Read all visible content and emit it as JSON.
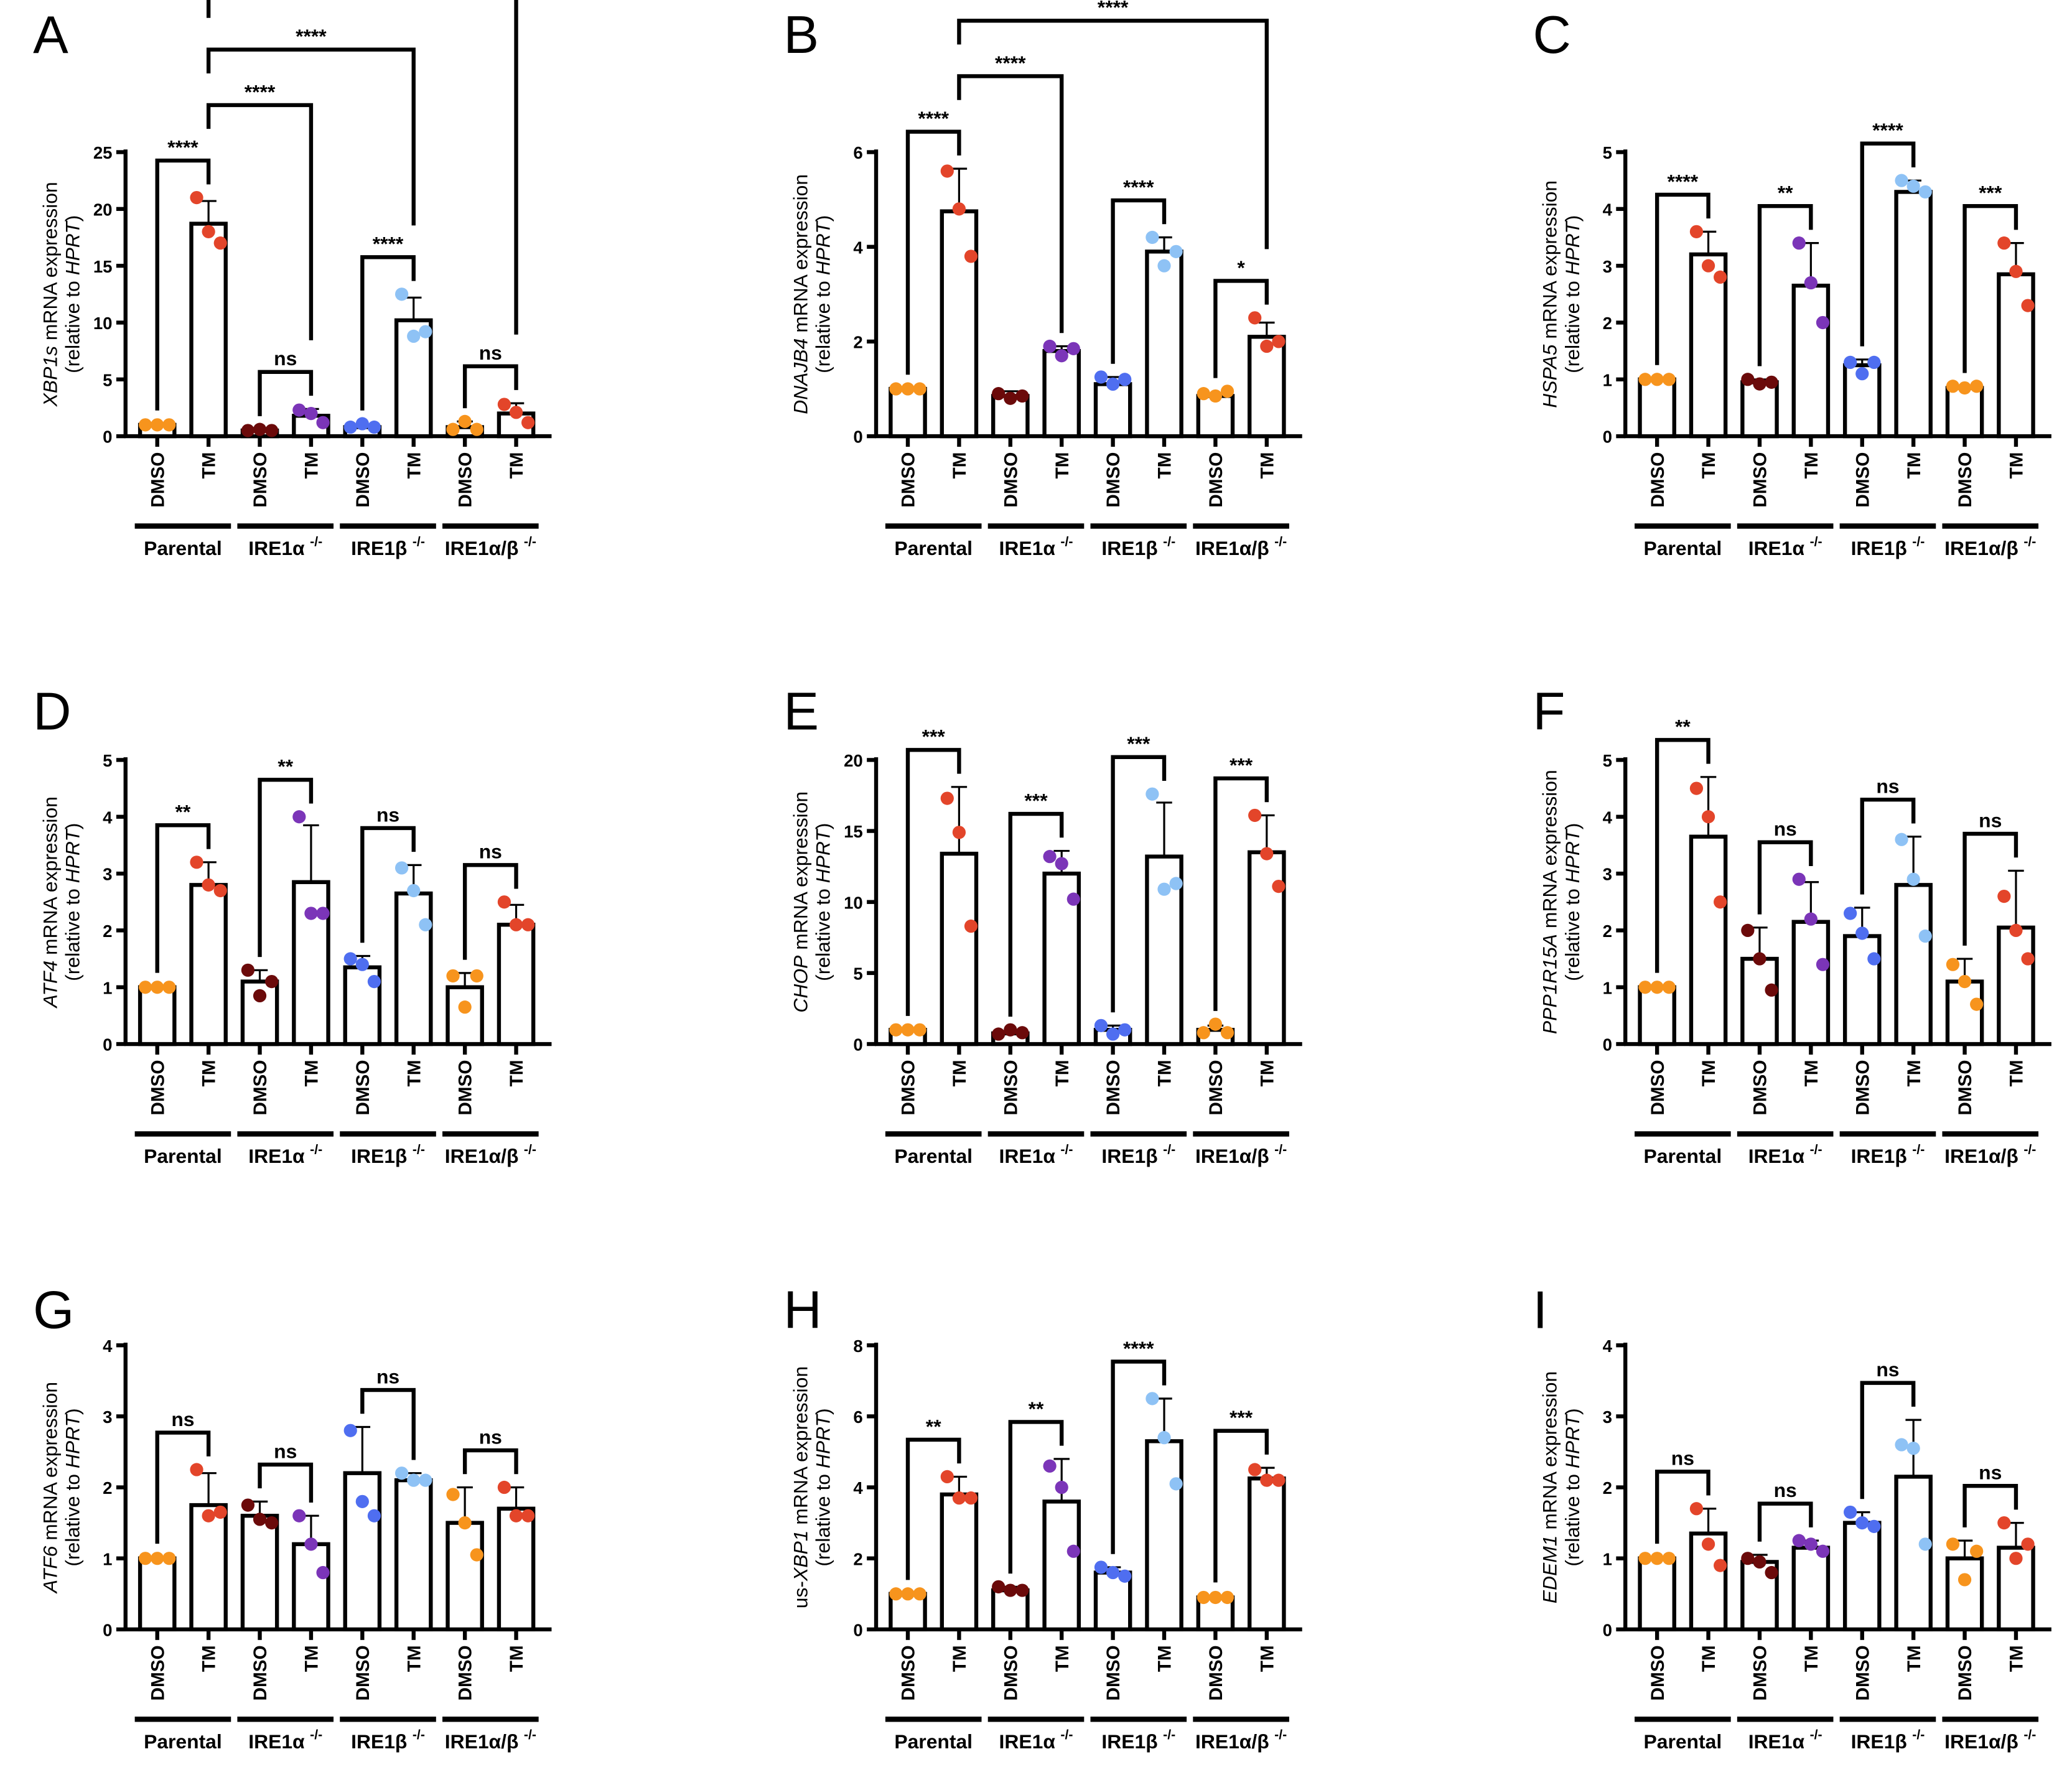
{
  "chart_data": {
    "type": "bar",
    "groups": [
      "Parental",
      "IRE1α",
      "IRE1β",
      "IRE1α/β"
    ],
    "group_superscript": "-/-",
    "treatments": [
      "DMSO",
      "TM"
    ],
    "point_colors": [
      "#F7941D",
      "#E3452A",
      "#6B0A0A",
      "#7B35B8",
      "#4F6EF0",
      "#8EC2F5",
      "#F7941D",
      "#E3452A"
    ],
    "ylabel_mid": " mRNA expression",
    "ylabel_line2_pre": "(relative to ",
    "ylabel_line2_gene": "HPRT",
    "ylabel_line2_post": ")",
    "panels": [
      {
        "letter": "A",
        "gene": "XBP1s",
        "prefix": "",
        "ylim": [
          0,
          25
        ],
        "yticks": [
          "0",
          "5",
          "10",
          "15",
          "20",
          "25"
        ],
        "means": [
          1,
          18.7,
          0.5,
          1.8,
          0.8,
          10.2,
          0.8,
          2.0
        ],
        "sd": [
          0.1,
          2,
          0.05,
          0.6,
          0.2,
          2,
          0.5,
          0.9
        ],
        "points": [
          [
            1,
            1,
            1
          ],
          [
            21,
            18,
            17
          ],
          [
            0.5,
            0.6,
            0.5
          ],
          [
            2.3,
            2.0,
            1.2
          ],
          [
            0.8,
            1.1,
            0.8
          ],
          [
            12.5,
            8.8,
            9.2
          ],
          [
            0.6,
            1.3,
            0.6
          ],
          [
            2.8,
            2.1,
            1.2
          ]
        ],
        "comparisons": [
          {
            "a": 0,
            "b": 1,
            "label": "****"
          },
          {
            "a": 2,
            "b": 3,
            "label": "ns"
          },
          {
            "a": 4,
            "b": 5,
            "label": "****"
          },
          {
            "a": 6,
            "b": 7,
            "label": "ns"
          },
          {
            "a": 1,
            "b": 3,
            "label": "****"
          },
          {
            "a": 1,
            "b": 5,
            "label": "****"
          },
          {
            "a": 1,
            "b": 7,
            "label": "****"
          }
        ]
      },
      {
        "letter": "B",
        "gene": "DNAJB4",
        "prefix": "",
        "ylim": [
          0,
          6
        ],
        "yticks": [
          "0",
          "2",
          "4",
          "6"
        ],
        "means": [
          1,
          4.75,
          0.85,
          1.8,
          1.1,
          3.9,
          0.85,
          2.1
        ],
        "sd": [
          0.02,
          0.9,
          0.1,
          0.1,
          0.15,
          0.3,
          0.05,
          0.3
        ],
        "points": [
          [
            1,
            1,
            1
          ],
          [
            5.6,
            4.8,
            3.8
          ],
          [
            0.9,
            0.8,
            0.85
          ],
          [
            1.9,
            1.7,
            1.85
          ],
          [
            1.25,
            1.1,
            1.2
          ],
          [
            4.2,
            3.6,
            3.9
          ],
          [
            0.9,
            0.85,
            0.95
          ],
          [
            2.5,
            1.9,
            2.0
          ]
        ],
        "comparisons": [
          {
            "a": 0,
            "b": 1,
            "label": "****"
          },
          {
            "a": 4,
            "b": 5,
            "label": "****"
          },
          {
            "a": 6,
            "b": 7,
            "label": "*"
          },
          {
            "a": 1,
            "b": 3,
            "label": "****"
          },
          {
            "a": 1,
            "b": 7,
            "label": "****"
          }
        ]
      },
      {
        "letter": "C",
        "gene": "HSPA5",
        "prefix": "",
        "ylim": [
          0,
          5
        ],
        "yticks": [
          "0",
          "1",
          "2",
          "3",
          "4",
          "5"
        ],
        "means": [
          1,
          3.2,
          0.95,
          2.65,
          1.25,
          4.3,
          0.85,
          2.85
        ],
        "sd": [
          0.02,
          0.4,
          0.05,
          0.75,
          0.1,
          0.2,
          0.03,
          0.55
        ],
        "points": [
          [
            1,
            1,
            1
          ],
          [
            3.6,
            3.0,
            2.8
          ],
          [
            1.0,
            0.92,
            0.95
          ],
          [
            3.4,
            2.7,
            2.0
          ],
          [
            1.3,
            1.1,
            1.3
          ],
          [
            4.5,
            4.4,
            4.3
          ],
          [
            0.88,
            0.85,
            0.88
          ],
          [
            3.4,
            2.9,
            2.3
          ]
        ],
        "comparisons": [
          {
            "a": 0,
            "b": 1,
            "label": "****"
          },
          {
            "a": 2,
            "b": 3,
            "label": "**"
          },
          {
            "a": 4,
            "b": 5,
            "label": "****"
          },
          {
            "a": 6,
            "b": 7,
            "label": "***"
          }
        ]
      },
      {
        "letter": "D",
        "gene": "ATF4",
        "prefix": "",
        "ylim": [
          0,
          5
        ],
        "yticks": [
          "0",
          "1",
          "2",
          "3",
          "4",
          "5"
        ],
        "means": [
          1,
          2.8,
          1.1,
          2.85,
          1.35,
          2.65,
          1.0,
          2.1
        ],
        "sd": [
          0.02,
          0.4,
          0.2,
          1.0,
          0.2,
          0.5,
          0.25,
          0.35
        ],
        "points": [
          [
            1,
            1,
            1
          ],
          [
            3.2,
            2.8,
            2.7
          ],
          [
            1.3,
            0.85,
            1.1
          ],
          [
            4.0,
            2.3,
            2.3
          ],
          [
            1.5,
            1.4,
            1.1
          ],
          [
            3.1,
            2.7,
            2.1
          ],
          [
            1.2,
            0.65,
            1.2
          ],
          [
            2.5,
            2.1,
            2.1
          ]
        ],
        "comparisons": [
          {
            "a": 0,
            "b": 1,
            "label": "**"
          },
          {
            "a": 2,
            "b": 3,
            "label": "**"
          },
          {
            "a": 4,
            "b": 5,
            "label": "ns"
          },
          {
            "a": 6,
            "b": 7,
            "label": "ns"
          }
        ]
      },
      {
        "letter": "E",
        "gene": "CHOP",
        "prefix": "",
        "ylim": [
          0,
          20
        ],
        "yticks": [
          "0",
          "5",
          "10",
          "15",
          "20"
        ],
        "means": [
          1,
          13.4,
          0.75,
          12.0,
          1.0,
          13.2,
          1.0,
          13.5
        ],
        "sd": [
          0.05,
          4.7,
          0.1,
          1.6,
          0.3,
          3.8,
          0.3,
          2.6
        ],
        "points": [
          [
            1,
            1,
            1
          ],
          [
            17.3,
            14.9,
            8.3
          ],
          [
            0.7,
            1.0,
            0.8
          ],
          [
            13.2,
            12.7,
            10.2
          ],
          [
            1.3,
            0.7,
            1.0
          ],
          [
            17.6,
            10.9,
            11.3
          ],
          [
            0.8,
            1.4,
            0.8
          ],
          [
            16.1,
            13.4,
            11.1
          ]
        ],
        "comparisons": [
          {
            "a": 0,
            "b": 1,
            "label": "***"
          },
          {
            "a": 2,
            "b": 3,
            "label": "***"
          },
          {
            "a": 4,
            "b": 5,
            "label": "***"
          },
          {
            "a": 6,
            "b": 7,
            "label": "***"
          }
        ]
      },
      {
        "letter": "F",
        "gene": "PPP1R15A",
        "prefix": "",
        "ylim": [
          0,
          5
        ],
        "yticks": [
          "0",
          "1",
          "2",
          "3",
          "4",
          "5"
        ],
        "means": [
          1,
          3.65,
          1.5,
          2.15,
          1.9,
          2.8,
          1.1,
          2.05
        ],
        "sd": [
          0.02,
          1.05,
          0.55,
          0.7,
          0.5,
          0.85,
          0.4,
          1.0
        ],
        "points": [
          [
            1,
            1,
            1
          ],
          [
            4.5,
            4.0,
            2.5
          ],
          [
            2.0,
            1.5,
            0.95
          ],
          [
            2.9,
            2.2,
            1.4
          ],
          [
            2.3,
            1.95,
            1.5
          ],
          [
            3.6,
            2.9,
            1.9
          ],
          [
            1.4,
            1.1,
            0.7
          ],
          [
            2.6,
            2.0,
            1.5
          ]
        ],
        "comparisons": [
          {
            "a": 0,
            "b": 1,
            "label": "**"
          },
          {
            "a": 2,
            "b": 3,
            "label": "ns"
          },
          {
            "a": 4,
            "b": 5,
            "label": "ns"
          },
          {
            "a": 6,
            "b": 7,
            "label": "ns"
          }
        ]
      },
      {
        "letter": "G",
        "gene": "ATF6",
        "prefix": "",
        "ylim": [
          0,
          4
        ],
        "yticks": [
          "0",
          "1",
          "2",
          "3",
          "4"
        ],
        "means": [
          1,
          1.75,
          1.6,
          1.2,
          2.2,
          2.1,
          1.5,
          1.7
        ],
        "sd": [
          0.02,
          0.45,
          0.2,
          0.4,
          0.65,
          0.1,
          0.5,
          0.3
        ],
        "points": [
          [
            1,
            1,
            1
          ],
          [
            2.25,
            1.6,
            1.65
          ],
          [
            1.75,
            1.55,
            1.5
          ],
          [
            1.6,
            1.2,
            0.8
          ],
          [
            2.8,
            1.8,
            1.6
          ],
          [
            2.2,
            2.1,
            2.1
          ],
          [
            1.9,
            1.5,
            1.05
          ],
          [
            2.0,
            1.6,
            1.6
          ]
        ],
        "comparisons": [
          {
            "a": 0,
            "b": 1,
            "label": "ns"
          },
          {
            "a": 2,
            "b": 3,
            "label": "ns"
          },
          {
            "a": 4,
            "b": 5,
            "label": "ns"
          },
          {
            "a": 6,
            "b": 7,
            "label": "ns"
          }
        ]
      },
      {
        "letter": "H",
        "gene": "XBP1",
        "prefix": "us-",
        "ylim": [
          0,
          8
        ],
        "yticks": [
          "0",
          "2",
          "4",
          "6",
          "8"
        ],
        "means": [
          1,
          3.8,
          1.1,
          3.6,
          1.6,
          5.3,
          0.9,
          4.25
        ],
        "sd": [
          0.02,
          0.5,
          0.1,
          1.2,
          0.15,
          1.2,
          0.05,
          0.3
        ],
        "points": [
          [
            1,
            1,
            1
          ],
          [
            4.3,
            3.7,
            3.7
          ],
          [
            1.2,
            1.1,
            1.1
          ],
          [
            4.6,
            4.0,
            2.2
          ],
          [
            1.75,
            1.6,
            1.5
          ],
          [
            6.5,
            5.4,
            4.1
          ],
          [
            0.9,
            0.9,
            0.9
          ],
          [
            4.5,
            4.2,
            4.2
          ]
        ],
        "comparisons": [
          {
            "a": 0,
            "b": 1,
            "label": "**"
          },
          {
            "a": 2,
            "b": 3,
            "label": "**"
          },
          {
            "a": 4,
            "b": 5,
            "label": "****"
          },
          {
            "a": 6,
            "b": 7,
            "label": "***"
          }
        ]
      },
      {
        "letter": "I",
        "gene": "EDEM1",
        "prefix": "",
        "ylim": [
          0,
          4
        ],
        "yticks": [
          "0",
          "1",
          "2",
          "3",
          "4"
        ],
        "means": [
          1,
          1.35,
          0.95,
          1.15,
          1.5,
          2.15,
          1.0,
          1.15
        ],
        "sd": [
          0.02,
          0.35,
          0.1,
          0.1,
          0.15,
          0.8,
          0.25,
          0.35
        ],
        "points": [
          [
            1,
            1,
            1
          ],
          [
            1.7,
            1.2,
            0.9
          ],
          [
            1.0,
            0.95,
            0.8
          ],
          [
            1.25,
            1.2,
            1.1
          ],
          [
            1.65,
            1.5,
            1.45
          ],
          [
            2.6,
            2.55,
            1.2
          ],
          [
            1.2,
            0.7,
            1.1
          ],
          [
            1.5,
            1.0,
            1.2
          ]
        ],
        "comparisons": [
          {
            "a": 0,
            "b": 1,
            "label": "ns"
          },
          {
            "a": 2,
            "b": 3,
            "label": "ns"
          },
          {
            "a": 4,
            "b": 5,
            "label": "ns"
          },
          {
            "a": 6,
            "b": 7,
            "label": "ns"
          }
        ]
      }
    ]
  }
}
